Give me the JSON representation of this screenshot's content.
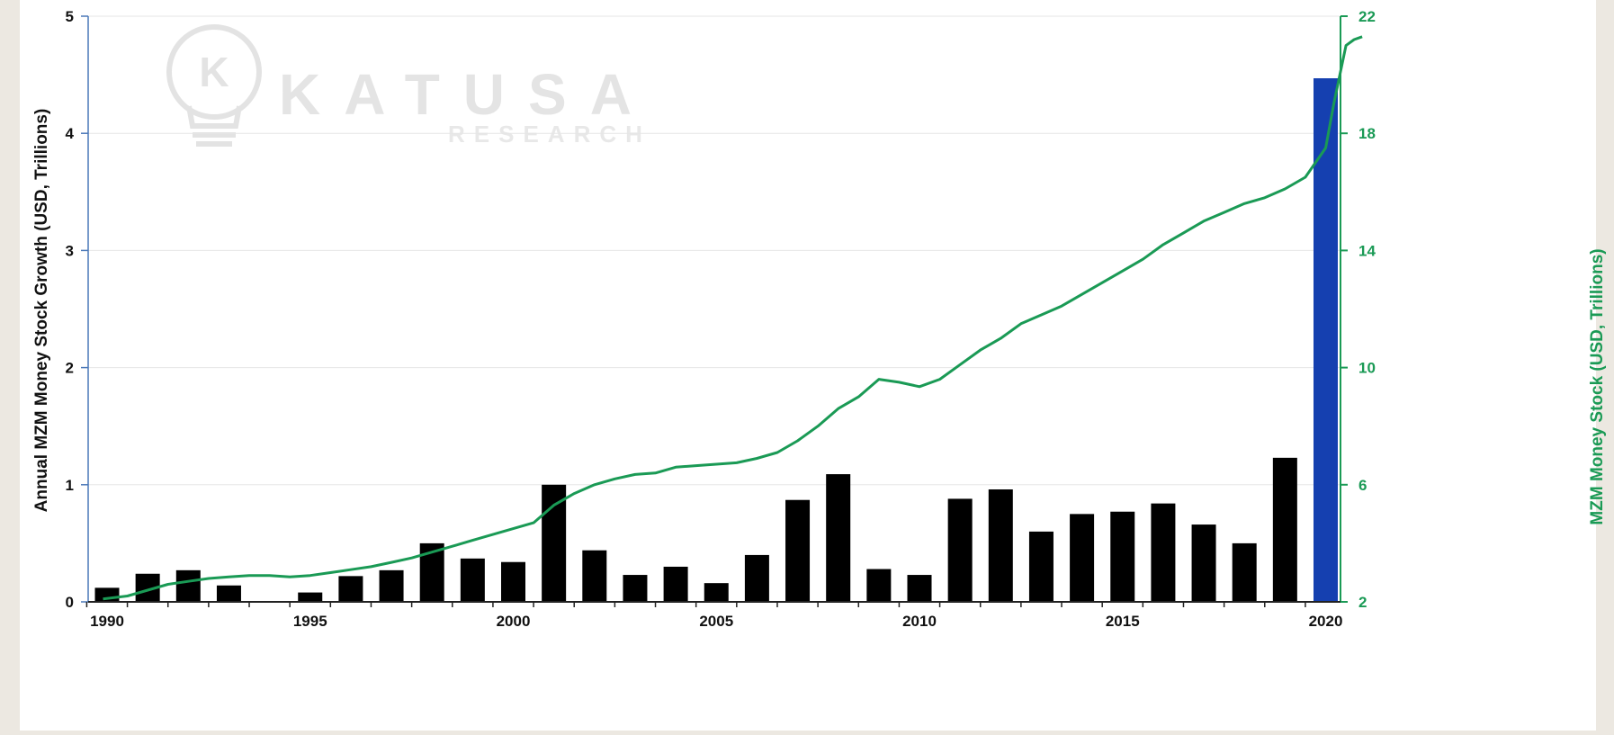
{
  "chart_data": {
    "type": "bar",
    "left_axis": {
      "label": "Annual MZM Money Stock Growth (USD, Trillions)",
      "ylim": [
        0,
        5
      ],
      "ticks": [
        "0",
        "1",
        "2",
        "3",
        "4",
        "5"
      ]
    },
    "right_axis": {
      "label": "MZM Money Stock (USD, Trillions)",
      "ylim": [
        2,
        22
      ],
      "ticks": [
        "2",
        "6",
        "10",
        "14",
        "18",
        "22"
      ]
    },
    "x_axis": {
      "ticks": [
        "1990",
        "1995",
        "2000",
        "2005",
        "2010",
        "2015",
        "2020"
      ]
    },
    "grid": "horizontal",
    "watermark": {
      "text": "KATUSA",
      "subtext": "RESEARCH"
    },
    "colors": {
      "bars": "#000000",
      "highlight_bar": "#1540b0",
      "line": "#1a9a55",
      "background": "#ffffff"
    },
    "bar_series": {
      "categories": [
        1990,
        1991,
        1992,
        1993,
        1994,
        1995,
        1996,
        1997,
        1998,
        1999,
        2000,
        2001,
        2002,
        2003,
        2004,
        2005,
        2006,
        2007,
        2008,
        2009,
        2010,
        2011,
        2012,
        2013,
        2014,
        2015,
        2016,
        2017,
        2018,
        2019,
        2020
      ],
      "values": [
        0.12,
        0.24,
        0.27,
        0.14,
        0.0,
        0.08,
        0.22,
        0.27,
        0.5,
        0.37,
        0.34,
        1.0,
        0.44,
        0.23,
        0.3,
        0.16,
        0.4,
        0.87,
        1.09,
        0.28,
        0.23,
        0.88,
        0.96,
        0.6,
        0.75,
        0.77,
        0.84,
        0.66,
        0.5,
        1.23,
        4.47
      ],
      "highlight_index": 30
    },
    "line_series": {
      "x": [
        1989.9,
        1990.5,
        1991,
        1991.5,
        1992,
        1992.5,
        1993,
        1993.5,
        1994,
        1994.5,
        1995,
        1995.5,
        1996,
        1996.5,
        1997,
        1997.5,
        1998,
        1998.5,
        1999,
        1999.5,
        2000,
        2000.5,
        2001,
        2001.5,
        2002,
        2002.5,
        2003,
        2003.5,
        2004,
        2004.5,
        2005,
        2005.5,
        2006,
        2006.5,
        2007,
        2007.5,
        2008,
        2008.5,
        2009,
        2009.5,
        2010,
        2010.5,
        2011,
        2011.5,
        2012,
        2012.5,
        2013,
        2013.5,
        2014,
        2014.5,
        2015,
        2015.5,
        2016,
        2016.5,
        2017,
        2017.5,
        2018,
        2018.5,
        2019,
        2019.5,
        2020,
        2020.2,
        2020.5,
        2020.7,
        2020.9
      ],
      "y": [
        2.1,
        2.2,
        2.4,
        2.6,
        2.7,
        2.8,
        2.85,
        2.9,
        2.9,
        2.85,
        2.9,
        3.0,
        3.1,
        3.2,
        3.35,
        3.5,
        3.7,
        3.9,
        4.1,
        4.3,
        4.5,
        4.7,
        5.3,
        5.7,
        6.0,
        6.2,
        6.35,
        6.4,
        6.6,
        6.65,
        6.7,
        6.75,
        6.9,
        7.1,
        7.5,
        8.0,
        8.6,
        9.0,
        9.6,
        9.5,
        9.35,
        9.6,
        10.1,
        10.6,
        11.0,
        11.5,
        11.8,
        12.1,
        12.5,
        12.9,
        13.3,
        13.7,
        14.2,
        14.6,
        15.0,
        15.3,
        15.6,
        15.8,
        16.1,
        16.5,
        17.5,
        19.0,
        21.0,
        21.2,
        21.3
      ]
    }
  }
}
